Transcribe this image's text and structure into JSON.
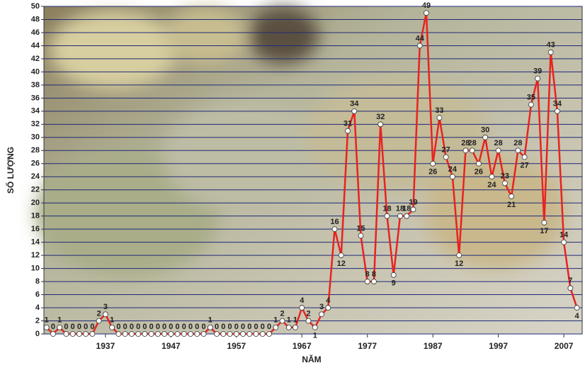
{
  "chart_data": {
    "type": "line",
    "x_label": "NĂM",
    "y_label": "SỐ LƯỢNG",
    "x": [
      1928,
      1929,
      1930,
      1931,
      1932,
      1933,
      1934,
      1935,
      1936,
      1937,
      1938,
      1939,
      1940,
      1941,
      1942,
      1943,
      1944,
      1945,
      1946,
      1947,
      1948,
      1949,
      1950,
      1951,
      1952,
      1953,
      1954,
      1955,
      1956,
      1957,
      1958,
      1959,
      1960,
      1961,
      1962,
      1963,
      1964,
      1965,
      1966,
      1967,
      1968,
      1969,
      1970,
      1971,
      1972,
      1973,
      1974,
      1975,
      1976,
      1977,
      1978,
      1979,
      1980,
      1981,
      1982,
      1983,
      1984,
      1985,
      1986,
      1987,
      1988,
      1989,
      1990,
      1991,
      1992,
      1993,
      1994,
      1995,
      1996,
      1997,
      1998,
      1999,
      2000,
      2001,
      2002,
      2003,
      2004,
      2005,
      2006,
      2007,
      2008,
      2009
    ],
    "values": [
      1,
      0,
      1,
      0,
      0,
      0,
      0,
      0,
      2,
      3,
      1,
      0,
      0,
      0,
      0,
      0,
      0,
      0,
      0,
      0,
      0,
      0,
      0,
      0,
      0,
      1,
      0,
      0,
      0,
      0,
      0,
      0,
      0,
      0,
      0,
      1,
      2,
      1,
      1,
      4,
      2,
      1,
      3,
      4,
      16,
      12,
      31,
      34,
      15,
      8,
      8,
      32,
      18,
      9,
      18,
      18,
      19,
      44,
      49,
      26,
      33,
      27,
      24,
      12,
      28,
      28,
      26,
      30,
      24,
      28,
      23,
      21,
      28,
      27,
      35,
      39,
      17,
      43,
      34,
      14,
      7,
      4
    ],
    "color": "#e8231f",
    "marker_color": "#ffffff",
    "xlim": [
      1927.6,
      2009.8
    ],
    "xticks": [
      1937,
      1947,
      1957,
      1967,
      1977,
      1987,
      1997,
      2007
    ],
    "ylim": [
      0,
      50
    ],
    "yticks": [
      0,
      2,
      4,
      6,
      8,
      10,
      12,
      14,
      16,
      18,
      20,
      22,
      24,
      26,
      28,
      30,
      32,
      34,
      36,
      38,
      40,
      42,
      44,
      46,
      48,
      50
    ],
    "grid": true
  }
}
